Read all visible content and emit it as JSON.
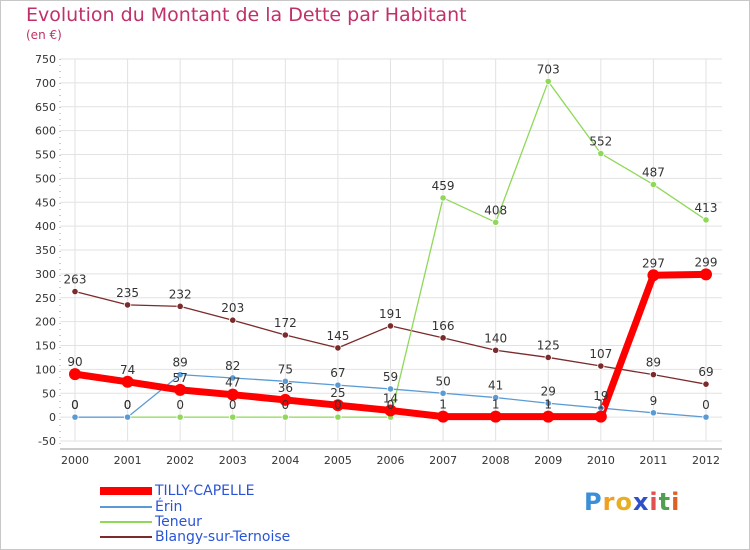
{
  "chart_data": {
    "type": "line",
    "title": "Evolution du Montant de la Dette par Habitant",
    "subtitle": "(en €)",
    "x": [
      "2000",
      "2001",
      "2002",
      "2003",
      "2004",
      "2005",
      "2006",
      "2007",
      "2008",
      "2009",
      "2010",
      "2011",
      "2012"
    ],
    "ylim": [
      -50,
      750
    ],
    "yticks": [
      -50,
      0,
      50,
      100,
      150,
      200,
      250,
      300,
      350,
      400,
      450,
      500,
      550,
      600,
      650,
      700,
      750
    ],
    "grid": true,
    "legend_position": "bottom-left",
    "series": [
      {
        "name": "TILLY-CAPELLE",
        "color": "#ff0000",
        "values": [
          90,
          74,
          57,
          47,
          36,
          25,
          14,
          1,
          1,
          1,
          1,
          297,
          299
        ]
      },
      {
        "name": "Érin",
        "color": "#5b9bd5",
        "values": [
          0,
          0,
          89,
          82,
          75,
          67,
          59,
          50,
          41,
          29,
          19,
          9,
          0
        ]
      },
      {
        "name": "Teneur",
        "color": "#8fd85a",
        "values": [
          0,
          0,
          0,
          0,
          0,
          0,
          0,
          459,
          408,
          703,
          552,
          487,
          413
        ]
      },
      {
        "name": "Blangy-sur-Ternoise",
        "color": "#7b2b2b",
        "values": [
          263,
          235,
          232,
          203,
          172,
          145,
          191,
          166,
          140,
          125,
          107,
          89,
          69
        ]
      }
    ]
  },
  "logo": {
    "p": "P",
    "r": "r",
    "o": "o",
    "x": "x",
    "i1": "i",
    "t": "t",
    "i2": "i"
  }
}
